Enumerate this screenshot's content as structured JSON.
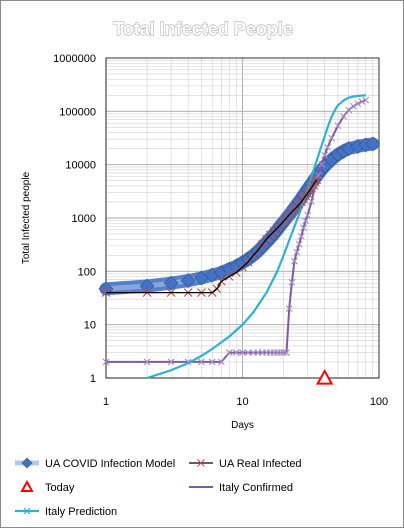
{
  "chart_data": {
    "type": "line",
    "title": "Total Infected People",
    "xlabel": "Days",
    "ylabel": "Total Infected people",
    "x_scale": "log",
    "y_scale": "log",
    "xlim": [
      1,
      100
    ],
    "ylim": [
      1,
      1000000
    ],
    "x_ticks": [
      "1",
      "10",
      "100"
    ],
    "y_ticks": [
      "1",
      "10",
      "100",
      "1000",
      "10000",
      "100000",
      "1000000"
    ],
    "grid": true,
    "legend_position": "bottom",
    "series": [
      {
        "name": "UA COVID Infection Model",
        "color": "#4472c4",
        "marker": "diamond",
        "x": [
          1,
          2,
          3,
          4,
          5,
          6,
          7,
          8,
          9,
          10,
          11,
          12,
          13,
          14,
          15,
          16,
          17,
          18,
          19,
          20,
          22,
          24,
          26,
          28,
          30,
          32,
          34,
          36,
          38,
          40,
          45,
          50,
          55,
          60,
          70,
          80,
          90
        ],
        "y": [
          47,
          53,
          60,
          67,
          75,
          85,
          95,
          110,
          125,
          145,
          170,
          200,
          240,
          290,
          350,
          420,
          500,
          600,
          720,
          850,
          1150,
          1550,
          2050,
          2700,
          3500,
          4400,
          5500,
          6700,
          8000,
          9400,
          12500,
          15500,
          18000,
          20000,
          22000,
          23500,
          24500
        ]
      },
      {
        "name": "UA Real Infected",
        "color": "#c0504d",
        "marker": "x",
        "x": [
          1,
          2,
          3,
          4,
          5,
          6,
          6.5,
          7,
          8,
          9,
          10,
          11,
          12,
          13,
          14,
          15,
          16,
          17,
          18,
          19,
          20,
          21,
          22,
          23,
          24,
          25,
          26,
          27,
          28,
          29,
          30,
          31,
          32,
          33,
          34,
          35
        ],
        "y": [
          40,
          40,
          40,
          40,
          40,
          40,
          47,
          65,
          80,
          95,
          120,
          150,
          200,
          250,
          320,
          400,
          480,
          560,
          650,
          750,
          870,
          1000,
          1150,
          1300,
          1450,
          1600,
          1800,
          2000,
          2300,
          2600,
          2900,
          3300,
          3700,
          4200,
          4700,
          5200
        ]
      },
      {
        "name": "Today",
        "color": "#ff0000",
        "marker": "triangle",
        "x": [
          40
        ],
        "y": [
          1
        ]
      },
      {
        "name": "Italy Confirmed",
        "color": "#7f5aa2",
        "marker": "x",
        "x": [
          1,
          2,
          3,
          4,
          5,
          6,
          7,
          8,
          9,
          10,
          11,
          12,
          13,
          14,
          15,
          16,
          17,
          18,
          19,
          20,
          21,
          22,
          23,
          24,
          25,
          26,
          27,
          28,
          29,
          30,
          32,
          34,
          36,
          38,
          40,
          42,
          45,
          50,
          55,
          60,
          65,
          70,
          75,
          80
        ],
        "y": [
          2,
          2,
          2,
          2,
          2,
          2,
          2,
          3,
          3,
          3,
          3,
          3,
          3,
          3,
          3,
          3,
          3,
          3,
          3,
          3,
          3,
          20,
          62,
          155,
          229,
          322,
          453,
          655,
          888,
          1128,
          2036,
          3858,
          6362,
          10149,
          15113,
          21157,
          31506,
          53578,
          80539,
          105792,
          124632,
          139422,
          152271,
          162488
        ]
      },
      {
        "name": "Italy Prediction",
        "color": "#31b0cf",
        "marker": "none",
        "x": [
          2,
          3,
          4,
          5,
          6,
          8,
          10,
          12,
          15,
          18,
          20,
          22,
          25,
          28,
          30,
          32,
          35,
          38,
          40,
          42,
          45,
          48,
          50,
          55,
          60,
          65,
          70,
          80
        ],
        "y": [
          1,
          1.4,
          1.9,
          2.6,
          3.5,
          6,
          10,
          17,
          40,
          100,
          200,
          380,
          900,
          2000,
          3400,
          6000,
          12000,
          23000,
          34000,
          50000,
          80000,
          110000,
          130000,
          160000,
          180000,
          190000,
          195000,
          200000
        ]
      }
    ]
  }
}
